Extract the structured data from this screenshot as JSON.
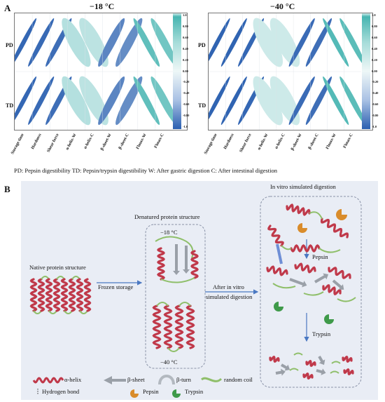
{
  "panelA": {
    "letter": "A",
    "title_left": "−18 °C",
    "title_right": "−40 °C",
    "row_labels": [
      "PD",
      "TD"
    ],
    "x_labels": [
      "Storage time",
      "Hardness",
      "Shear force",
      "α-helix-W",
      "α-helix-C",
      "β-sheet-W",
      "β-sheet-C",
      "Flmax-W",
      "Flmax-C"
    ],
    "colorbar_ticks": [
      "1.0",
      "0.80",
      "0.60",
      "0.40",
      "0.20",
      "0.00",
      "-0.20",
      "-0.40",
      "-0.60",
      "-0.80",
      "-1.0"
    ],
    "legend": "PD: Pepsin digestibility   TD: Pepsin/trypsin digestibility   W: After gastric digestion   C: After intestinal  digestion",
    "colors": {
      "neg": "#2a5fb0",
      "pos": "#47b5b1",
      "light": "#cfeceb"
    }
  },
  "chart_data": [
    {
      "type": "heatmap",
      "title": "−18 °C",
      "rows": [
        "PD",
        "TD"
      ],
      "columns": [
        "Storage time",
        "Hardness",
        "Shear force",
        "α-helix-W",
        "α-helix-C",
        "β-sheet-W",
        "β-sheet-C",
        "Flmax-W",
        "Flmax-C"
      ],
      "values": [
        [
          -0.95,
          -0.93,
          -0.9,
          0.35,
          0.3,
          -0.75,
          -0.7,
          0.85,
          0.75
        ],
        [
          -0.95,
          -0.93,
          -0.9,
          0.35,
          0.3,
          -0.75,
          -0.7,
          0.85,
          0.75
        ]
      ],
      "colorbar_range": [
        -1.0,
        1.0
      ]
    },
    {
      "type": "heatmap",
      "title": "−40 °C",
      "rows": [
        "PD",
        "TD"
      ],
      "columns": [
        "Storage time",
        "Hardness",
        "Shear force",
        "α-helix-W",
        "α-helix-C",
        "β-sheet-W",
        "β-sheet-C",
        "Flmax-W",
        "Flmax-C"
      ],
      "values": [
        [
          -0.97,
          -0.97,
          -0.95,
          0.2,
          0.2,
          -0.92,
          -0.9,
          0.92,
          0.88
        ],
        [
          -0.97,
          -0.97,
          -0.95,
          0.2,
          0.2,
          -0.92,
          -0.9,
          0.92,
          0.88
        ]
      ],
      "colorbar_range": [
        -1.0,
        1.0
      ]
    }
  ],
  "panelB": {
    "letter": "B",
    "native": "Native protein structure",
    "frozen": "Frozen storage",
    "denatured": "Denatured protein structure",
    "t18": "−18 °C",
    "t40": "−40 °C",
    "after1": "After in vitro",
    "after2": "simulated digestion",
    "invitro": "In vitro simulated digestion",
    "pepsin": "Pepsin",
    "trypsin": "Trypsin",
    "legend": {
      "helix": "α-helix",
      "sheet": "β-sheet",
      "turn": "β-turn",
      "coil": "random coil",
      "hbond": "Hydrogen bond",
      "pepsin": "Pepsin",
      "trypsin": "Trypsin"
    },
    "colors": {
      "helix": "#c0394a",
      "sheet": "#9aa0a8",
      "coil": "#8fbf6a",
      "pepsin": "#d98c2b",
      "trypsin": "#3f9a4a",
      "bg": "#e9edf5"
    }
  }
}
